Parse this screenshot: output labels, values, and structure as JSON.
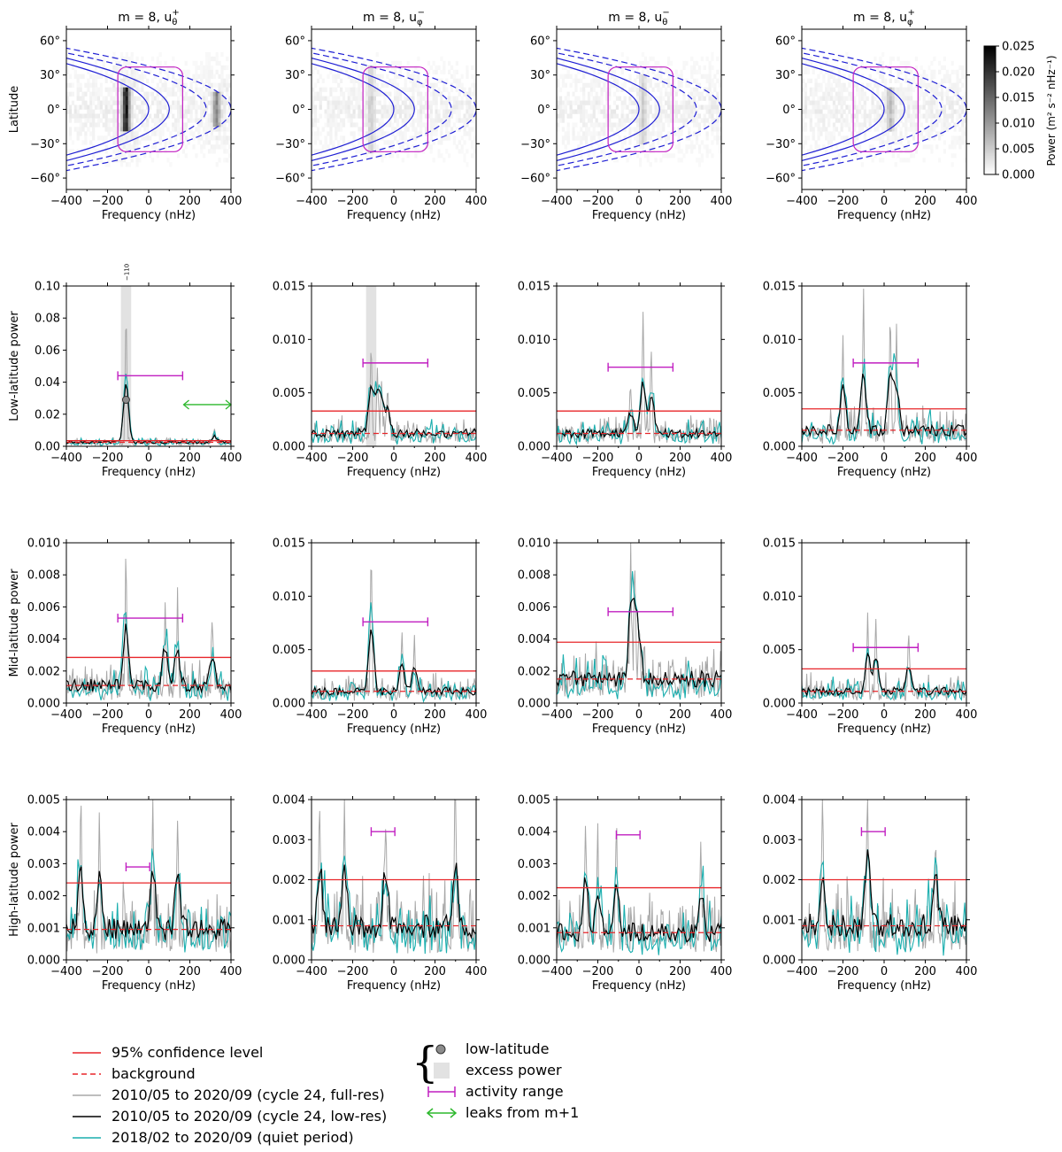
{
  "figure": {
    "colorbar": {
      "label": "Power (m² s⁻² nHz⁻¹)",
      "ticks": [
        "0.000",
        "0.005",
        "0.010",
        "0.015",
        "0.020",
        "0.025"
      ],
      "range": [
        0,
        0.025
      ]
    },
    "legend": {
      "confidence": "95% confidence level",
      "background": "background",
      "fullres": "2010/05 to 2020/09 (cycle 24, full-res)",
      "lowres": "2010/05 to 2020/09 (cycle 24, low-res)",
      "quiet": "2018/02 to 2020/09 (quiet period)",
      "lowlat": "low-latitude",
      "excess": "excess power",
      "activity": "activity range",
      "leaks": "leaks from m+1"
    }
  },
  "chart_data": [
    {
      "type": "heatmap",
      "title": "m = 8, u_θ^+",
      "xlabel": "Frequency (nHz)",
      "ylabel": "Latitude",
      "xlim": [
        -400,
        400
      ],
      "ylim": [
        -70,
        70
      ],
      "xticks": [
        "−400",
        "−200",
        "0",
        "200",
        "400"
      ],
      "yticks": [
        "60°",
        "30°",
        "0°",
        "−30°",
        "−60°"
      ],
      "hotspots": [
        {
          "freq": -110,
          "lat_range": [
            -20,
            18
          ],
          "power": 0.025
        },
        {
          "freq": 330,
          "lat_range": [
            -15,
            15
          ],
          "power": 0.012
        }
      ]
    },
    {
      "type": "heatmap",
      "title": "m = 8, u_φ^−",
      "xlabel": "Frequency (nHz)",
      "ylabel": "",
      "xlim": [
        -400,
        400
      ],
      "ylim": [
        -70,
        70
      ],
      "xticks": [
        "−400",
        "−200",
        "0",
        "200",
        "400"
      ],
      "yticks": [
        "60°",
        "30°",
        "0°",
        "−30°",
        "−60°"
      ],
      "hotspots": [
        {
          "freq": -110,
          "lat_range": [
            -40,
            40
          ],
          "power": 0.004
        }
      ]
    },
    {
      "type": "heatmap",
      "title": "m = 8, u_θ^−",
      "xlabel": "Frequency (nHz)",
      "ylabel": "",
      "xlim": [
        -400,
        400
      ],
      "ylim": [
        -70,
        70
      ],
      "xticks": [
        "−400",
        "−200",
        "0",
        "200",
        "400"
      ],
      "yticks": [
        "60°",
        "30°",
        "0°",
        "−30°",
        "−60°"
      ],
      "hotspots": [
        {
          "freq": 20,
          "lat_range": [
            -30,
            30
          ],
          "power": 0.004
        }
      ]
    },
    {
      "type": "heatmap",
      "title": "m = 8, u_φ^+",
      "xlabel": "Frequency (nHz)",
      "ylabel": "",
      "xlim": [
        -400,
        400
      ],
      "ylim": [
        -70,
        70
      ],
      "xticks": [
        "−400",
        "−200",
        "0",
        "200",
        "400"
      ],
      "yticks": [
        "60°",
        "30°",
        "0°",
        "−30°",
        "−60°"
      ],
      "hotspots": [
        {
          "freq": 30,
          "lat_range": [
            -20,
            20
          ],
          "power": 0.006
        }
      ]
    },
    {
      "type": "line",
      "ylabel": "Low-latitude power",
      "xlabel": "Frequency (nHz)",
      "xlim": [
        -400,
        400
      ],
      "ylim": [
        0,
        0.1
      ],
      "xticks": [
        "−400",
        "−200",
        "0",
        "200",
        "400"
      ],
      "yticks": [
        "0.00",
        "0.02",
        "0.04",
        "0.06",
        "0.08",
        "0.10"
      ],
      "confidence": 0.0035,
      "background": 0.0025,
      "activity_range": [
        -150,
        165,
        0.044
      ],
      "excess_band": [
        -135,
        -85
      ],
      "low_lat_marker": [
        -110,
        0.029
      ],
      "marker_label": "−110",
      "leak_range": [
        170,
        400,
        0.026
      ],
      "peaks": [
        [
          -110,
          0.08
        ],
        [
          320,
          0.008
        ]
      ]
    },
    {
      "type": "line",
      "ylabel": "",
      "xlabel": "Frequency (nHz)",
      "xlim": [
        -400,
        400
      ],
      "ylim": [
        0,
        0.015
      ],
      "xticks": [
        "−400",
        "−200",
        "0",
        "200",
        "400"
      ],
      "yticks": [
        "0.000",
        "0.005",
        "0.010",
        "0.015"
      ],
      "confidence": 0.0033,
      "background": 0.0012,
      "activity_range": [
        -150,
        165,
        0.0078
      ],
      "excess_band": [
        -135,
        -85
      ],
      "peaks": [
        [
          -110,
          0.009
        ],
        [
          -80,
          0.0068
        ],
        [
          -60,
          0.0057
        ],
        [
          -30,
          0.0048
        ]
      ]
    },
    {
      "type": "line",
      "ylabel": "",
      "xlabel": "Frequency (nHz)",
      "xlim": [
        -400,
        400
      ],
      "ylim": [
        0,
        0.015
      ],
      "xticks": [
        "−400",
        "−200",
        "0",
        "200",
        "400"
      ],
      "yticks": [
        "0.000",
        "0.005",
        "0.010",
        "0.015"
      ],
      "confidence": 0.0033,
      "background": 0.0012,
      "activity_range": [
        -150,
        165,
        0.0074
      ],
      "peaks": [
        [
          20,
          0.0107
        ],
        [
          60,
          0.0078
        ],
        [
          -40,
          0.0045
        ]
      ]
    },
    {
      "type": "line",
      "ylabel": "",
      "xlabel": "Frequency (nHz)",
      "xlim": [
        -400,
        400
      ],
      "ylim": [
        0,
        0.015
      ],
      "xticks": [
        "−400",
        "−200",
        "0",
        "200",
        "400"
      ],
      "yticks": [
        "0.000",
        "0.005",
        "0.010",
        "0.015"
      ],
      "confidence": 0.0035,
      "background": 0.0015,
      "activity_range": [
        -150,
        165,
        0.0078
      ],
      "peaks": [
        [
          -100,
          0.0116
        ],
        [
          30,
          0.0118
        ],
        [
          -200,
          0.0095
        ],
        [
          60,
          0.0088
        ]
      ]
    },
    {
      "type": "line",
      "ylabel": "Mid-latitude power",
      "xlabel": "Frequency (nHz)",
      "xlim": [
        -400,
        400
      ],
      "ylim": [
        0,
        0.01
      ],
      "xticks": [
        "−400",
        "−200",
        "0",
        "200",
        "400"
      ],
      "yticks": [
        "0.000",
        "0.002",
        "0.004",
        "0.006",
        "0.008",
        "0.010"
      ],
      "confidence": 0.00285,
      "background": 0.0011,
      "activity_range": [
        -150,
        165,
        0.0053
      ],
      "peaks": [
        [
          -110,
          0.0078
        ],
        [
          80,
          0.0055
        ],
        [
          140,
          0.005
        ],
        [
          310,
          0.004
        ]
      ]
    },
    {
      "type": "line",
      "ylabel": "",
      "xlabel": "Frequency (nHz)",
      "xlim": [
        -400,
        400
      ],
      "ylim": [
        0,
        0.015
      ],
      "xticks": [
        "−400",
        "−200",
        "0",
        "200",
        "400"
      ],
      "yticks": [
        "0.000",
        "0.005",
        "0.010",
        "0.015"
      ],
      "confidence": 0.003,
      "background": 0.0011,
      "activity_range": [
        -150,
        165,
        0.0076
      ],
      "peaks": [
        [
          -110,
          0.0138
        ],
        [
          40,
          0.0058
        ],
        [
          100,
          0.0047
        ]
      ]
    },
    {
      "type": "line",
      "ylabel": "",
      "xlabel": "Frequency (nHz)",
      "xlim": [
        -400,
        400
      ],
      "ylim": [
        0,
        0.01
      ],
      "xticks": [
        "−400",
        "−200",
        "0",
        "200",
        "400"
      ],
      "yticks": [
        "0.000",
        "0.002",
        "0.004",
        "0.006",
        "0.008",
        "0.010"
      ],
      "confidence": 0.0038,
      "background": 0.0015,
      "activity_range": [
        -150,
        165,
        0.0057
      ],
      "peaks": [
        [
          -40,
          0.0085
        ],
        [
          -20,
          0.0075
        ],
        [
          0,
          0.0042
        ]
      ]
    },
    {
      "type": "line",
      "ylabel": "",
      "xlabel": "Frequency (nHz)",
      "xlim": [
        -400,
        400
      ],
      "ylim": [
        0,
        0.015
      ],
      "xticks": [
        "−400",
        "−200",
        "0",
        "200",
        "400"
      ],
      "yticks": [
        "0.000",
        "0.005",
        "0.010",
        "0.015"
      ],
      "confidence": 0.0032,
      "background": 0.0011,
      "activity_range": [
        -150,
        165,
        0.0052
      ],
      "peaks": [
        [
          -80,
          0.0075
        ],
        [
          -40,
          0.0068
        ],
        [
          120,
          0.0055
        ]
      ]
    },
    {
      "type": "line",
      "ylabel": "High-latitude power",
      "xlabel": "Frequency (nHz)",
      "xlim": [
        -400,
        400
      ],
      "ylim": [
        0,
        0.005
      ],
      "xticks": [
        "−400",
        "−200",
        "0",
        "200",
        "400"
      ],
      "yticks": [
        "0.000",
        "0.001",
        "0.002",
        "0.003",
        "0.004",
        "0.005"
      ],
      "confidence": 0.0024,
      "background": 0.00095,
      "activity_range": [
        -110,
        5,
        0.0029
      ],
      "peaks": [
        [
          -330,
          0.0037
        ],
        [
          20,
          0.0044
        ],
        [
          140,
          0.0037
        ],
        [
          -240,
          0.0034
        ]
      ]
    },
    {
      "type": "line",
      "ylabel": "",
      "xlabel": "Frequency (nHz)",
      "xlim": [
        -400,
        400
      ],
      "ylim": [
        0,
        0.004
      ],
      "xticks": [
        "−400",
        "−200",
        "0",
        "200",
        "400"
      ],
      "yticks": [
        "0.000",
        "0.001",
        "0.002",
        "0.003",
        "0.004"
      ],
      "confidence": 0.002,
      "background": 0.00085,
      "activity_range": [
        -110,
        5,
        0.0032
      ],
      "peaks": [
        [
          -240,
          0.0034
        ],
        [
          -40,
          0.003
        ],
        [
          300,
          0.0032
        ],
        [
          -360,
          0.0032
        ]
      ]
    },
    {
      "type": "line",
      "ylabel": "",
      "xlabel": "Frequency (nHz)",
      "xlim": [
        -400,
        400
      ],
      "ylim": [
        0,
        0.005
      ],
      "xticks": [
        "−400",
        "−200",
        "0",
        "200",
        "400"
      ],
      "yticks": [
        "0.000",
        "0.001",
        "0.002",
        "0.003",
        "0.004",
        "0.005"
      ],
      "confidence": 0.00225,
      "background": 0.00085,
      "activity_range": [
        -110,
        5,
        0.0039
      ],
      "peaks": [
        [
          -260,
          0.004
        ],
        [
          -110,
          0.0038
        ],
        [
          -200,
          0.0032
        ],
        [
          300,
          0.003
        ]
      ]
    },
    {
      "type": "line",
      "ylabel": "",
      "xlabel": "Frequency (nHz)",
      "xlim": [
        -400,
        400
      ],
      "ylim": [
        0,
        0.004
      ],
      "xticks": [
        "−400",
        "−200",
        "0",
        "200",
        "400"
      ],
      "yticks": [
        "0.000",
        "0.001",
        "0.002",
        "0.003",
        "0.004"
      ],
      "confidence": 0.002,
      "background": 0.00085,
      "activity_range": [
        -110,
        5,
        0.0032
      ],
      "peaks": [
        [
          -80,
          0.0036
        ],
        [
          -300,
          0.003
        ],
        [
          250,
          0.0026
        ]
      ]
    }
  ]
}
